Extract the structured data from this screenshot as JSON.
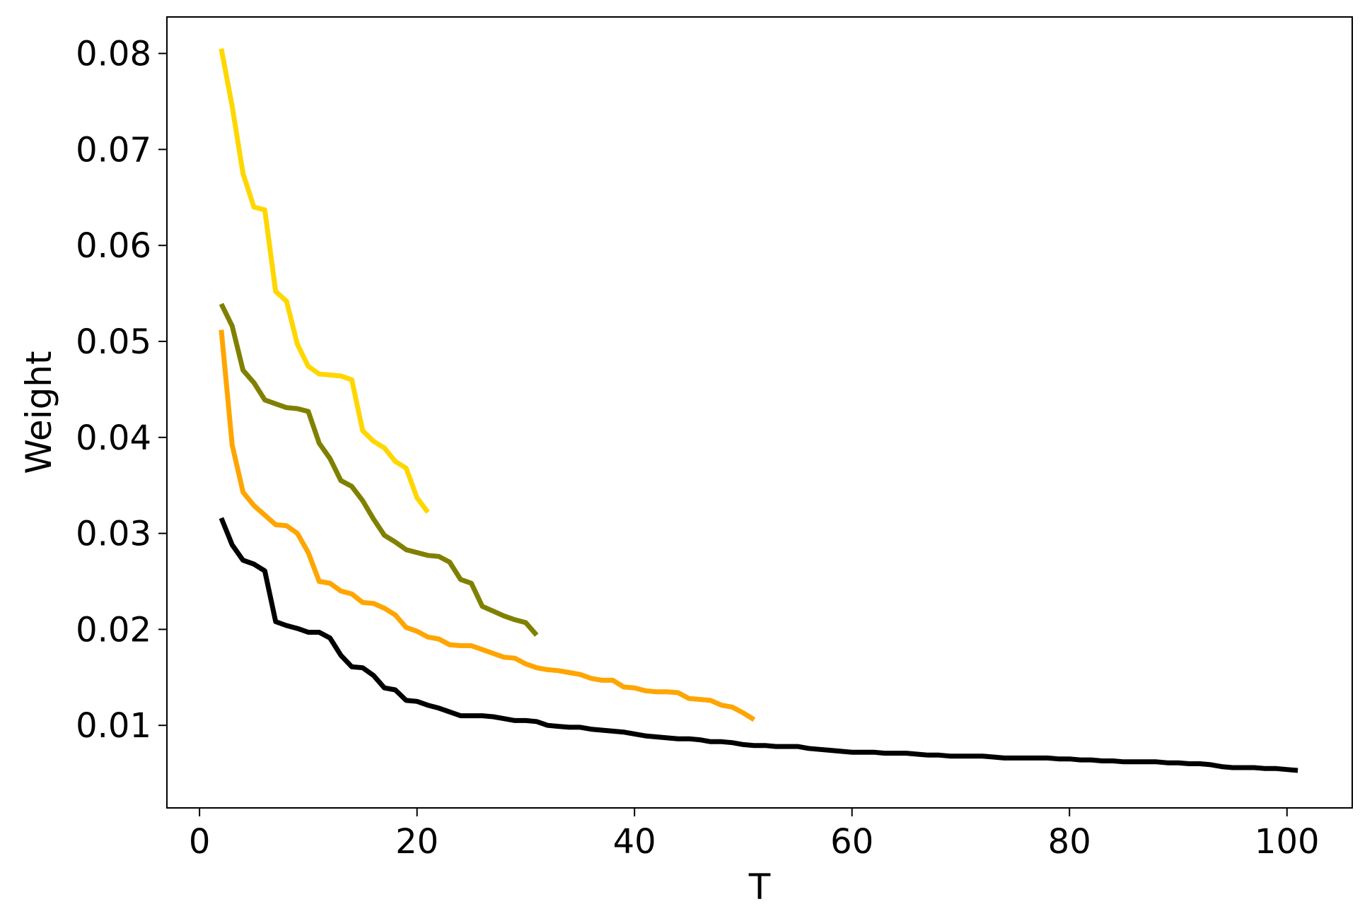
{
  "chart_data": {
    "type": "line",
    "title": "",
    "xlabel": "T",
    "ylabel": "Weight",
    "xlim": [
      -3,
      106
    ],
    "ylim": [
      0.0014,
      0.0838
    ],
    "xticks": [
      0,
      20,
      40,
      60,
      80,
      100
    ],
    "xtick_labels": [
      "0",
      "20",
      "40",
      "60",
      "80",
      "100"
    ],
    "yticks": [
      0.01,
      0.02,
      0.03,
      0.04,
      0.05,
      0.06,
      0.07,
      0.08
    ],
    "ytick_labels": [
      "0.01",
      "0.02",
      "0.03",
      "0.04",
      "0.05",
      "0.06",
      "0.07",
      "0.08"
    ],
    "grid": false,
    "legend": "none",
    "series": [
      {
        "color": "#FFD700",
        "x": [
          2,
          3,
          4,
          5,
          6,
          7,
          8,
          9,
          10,
          11,
          12,
          13,
          14,
          15,
          16,
          17,
          18,
          19,
          20,
          21
        ],
        "y": [
          0.0805,
          0.0745,
          0.0675,
          0.064,
          0.0637,
          0.0552,
          0.0542,
          0.0497,
          0.0474,
          0.0466,
          0.0465,
          0.0464,
          0.046,
          0.0407,
          0.0396,
          0.0389,
          0.0375,
          0.0368,
          0.0337,
          0.0322
        ]
      },
      {
        "color": "#808000",
        "x": [
          2,
          3,
          4,
          5,
          6,
          7,
          8,
          9,
          10,
          11,
          12,
          13,
          14,
          15,
          16,
          17,
          18,
          19,
          20,
          21,
          22,
          23,
          24,
          25,
          26,
          27,
          28,
          29,
          30,
          31
        ],
        "y": [
          0.0539,
          0.0516,
          0.047,
          0.0457,
          0.0439,
          0.0435,
          0.0431,
          0.043,
          0.0427,
          0.0394,
          0.0378,
          0.0355,
          0.0349,
          0.0334,
          0.0315,
          0.0298,
          0.0291,
          0.0283,
          0.028,
          0.0277,
          0.0276,
          0.027,
          0.0252,
          0.0248,
          0.0224,
          0.0219,
          0.0214,
          0.021,
          0.0207,
          0.0194
        ]
      },
      {
        "color": "#FFA500",
        "x": [
          2,
          3,
          4,
          5,
          6,
          7,
          8,
          9,
          10,
          11,
          12,
          13,
          14,
          15,
          16,
          17,
          18,
          19,
          20,
          21,
          22,
          23,
          24,
          25,
          26,
          27,
          28,
          29,
          30,
          31,
          32,
          33,
          34,
          35,
          36,
          37,
          38,
          39,
          40,
          41,
          42,
          43,
          44,
          45,
          46,
          47,
          48,
          49,
          50,
          51
        ],
        "y": [
          0.0512,
          0.0392,
          0.0343,
          0.0329,
          0.0319,
          0.0309,
          0.0308,
          0.03,
          0.028,
          0.025,
          0.0248,
          0.024,
          0.0237,
          0.0228,
          0.0227,
          0.0222,
          0.0215,
          0.0202,
          0.0198,
          0.0192,
          0.019,
          0.0184,
          0.0183,
          0.0183,
          0.0179,
          0.0175,
          0.0171,
          0.017,
          0.0164,
          0.016,
          0.0158,
          0.0157,
          0.0155,
          0.0153,
          0.0149,
          0.0147,
          0.0147,
          0.014,
          0.0139,
          0.0136,
          0.0135,
          0.0135,
          0.0134,
          0.0128,
          0.0127,
          0.0126,
          0.0121,
          0.0119,
          0.0113,
          0.0106
        ]
      },
      {
        "color": "#000000",
        "x": [
          2,
          3,
          4,
          5,
          6,
          7,
          8,
          9,
          10,
          11,
          12,
          13,
          14,
          15,
          16,
          17,
          18,
          19,
          20,
          21,
          22,
          23,
          24,
          25,
          26,
          27,
          28,
          29,
          30,
          31,
          32,
          33,
          34,
          35,
          36,
          37,
          38,
          39,
          40,
          41,
          42,
          43,
          44,
          45,
          46,
          47,
          48,
          49,
          50,
          51,
          52,
          53,
          54,
          55,
          56,
          57,
          58,
          59,
          60,
          61,
          62,
          63,
          64,
          65,
          66,
          67,
          68,
          69,
          70,
          71,
          72,
          73,
          74,
          75,
          76,
          77,
          78,
          79,
          80,
          81,
          82,
          83,
          84,
          85,
          86,
          87,
          88,
          89,
          90,
          91,
          92,
          93,
          94,
          95,
          96,
          97,
          98,
          99,
          100,
          101
        ],
        "y": [
          0.0316,
          0.0288,
          0.0272,
          0.0268,
          0.0261,
          0.0208,
          0.0204,
          0.0201,
          0.0197,
          0.0197,
          0.0191,
          0.0173,
          0.0161,
          0.016,
          0.0152,
          0.0139,
          0.0137,
          0.0126,
          0.0125,
          0.0121,
          0.0118,
          0.0114,
          0.011,
          0.011,
          0.011,
          0.0109,
          0.0107,
          0.0105,
          0.0105,
          0.0104,
          0.01,
          0.0099,
          0.0098,
          0.0098,
          0.0096,
          0.0095,
          0.0094,
          0.0093,
          0.0091,
          0.0089,
          0.0088,
          0.0087,
          0.0086,
          0.0086,
          0.0085,
          0.0083,
          0.0083,
          0.0082,
          0.008,
          0.0079,
          0.0079,
          0.0078,
          0.0078,
          0.0078,
          0.0076,
          0.0075,
          0.0074,
          0.0073,
          0.0072,
          0.0072,
          0.0072,
          0.0071,
          0.0071,
          0.0071,
          0.007,
          0.0069,
          0.0069,
          0.0068,
          0.0068,
          0.0068,
          0.0068,
          0.0067,
          0.0066,
          0.0066,
          0.0066,
          0.0066,
          0.0066,
          0.0065,
          0.0065,
          0.0064,
          0.0064,
          0.0063,
          0.0063,
          0.0062,
          0.0062,
          0.0062,
          0.0062,
          0.0061,
          0.0061,
          0.006,
          0.006,
          0.0059,
          0.0057,
          0.0056,
          0.0056,
          0.0056,
          0.0055,
          0.0055,
          0.0054,
          0.0053
        ]
      }
    ]
  }
}
